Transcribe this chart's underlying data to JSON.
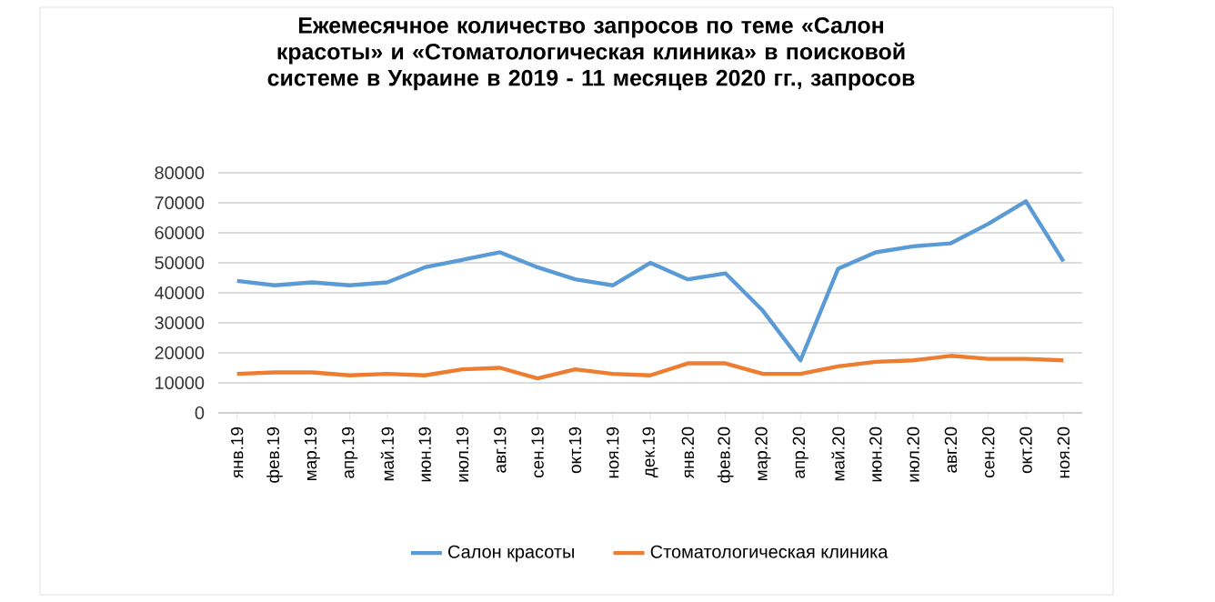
{
  "chart_data": {
    "type": "line",
    "title": "Ежемесячное количество запросов по теме «Салон красоты» и «Стоматологическая клиника» в поисковой системе в Украине в 2019 - 11 месяцев 2020 гг., запросов",
    "categories": [
      "янв.19",
      "фев.19",
      "мар.19",
      "апр.19",
      "май.19",
      "июн.19",
      "июл.19",
      "авг.19",
      "сен.19",
      "окт.19",
      "ноя.19",
      "дек.19",
      "янв.20",
      "фев.20",
      "мар.20",
      "апр.20",
      "май.20",
      "июн.20",
      "июл.20",
      "авг.20",
      "сен.20",
      "окт.20",
      "ноя.20"
    ],
    "series": [
      {
        "name": "Салон красоты",
        "color": "#5b9bd5",
        "values": [
          44000,
          42500,
          43500,
          42500,
          43500,
          48500,
          51000,
          53500,
          48500,
          44500,
          42500,
          50000,
          44500,
          46500,
          34000,
          17500,
          48000,
          53500,
          55500,
          56500,
          63000,
          70500,
          50500
        ]
      },
      {
        "name": "Стоматологическая клиника",
        "color": "#ed7d31",
        "values": [
          13000,
          13500,
          13500,
          12500,
          13000,
          12500,
          14500,
          15000,
          11500,
          14500,
          13000,
          12500,
          16500,
          16500,
          13000,
          13000,
          15500,
          17000,
          17500,
          19000,
          18000,
          18000,
          17500
        ]
      }
    ],
    "ylim": [
      0,
      80000
    ],
    "yticks": [
      0,
      10000,
      20000,
      30000,
      40000,
      50000,
      60000,
      70000,
      80000
    ],
    "grid": "y",
    "legend": "bottom",
    "marker": "none",
    "line_style": "solid"
  }
}
